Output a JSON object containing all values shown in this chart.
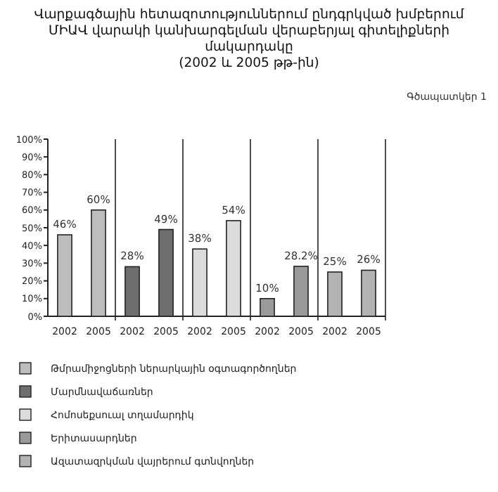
{
  "chart_data": {
    "type": "bar",
    "title": "Վարքագծային հետազոտություններում ընդգրկված խմբերում\nՄԻԱՎ վարակի կանխարգելման վերաբերյալ գիտելիքների\nմակարդակը\n(2002 և 2005 թթ-ին)",
    "annotations": [
      "Գծապատկեր 1"
    ],
    "categories": [
      "2002",
      "2005",
      "2002",
      "2005",
      "2002",
      "2005",
      "2002",
      "2005",
      "2002",
      "2005"
    ],
    "series": [
      {
        "name": "Թմրամիջոցների ներարկային օգտագործողներ",
        "color": "#bdbdbd",
        "values": [
          46,
          60,
          null,
          null,
          null,
          null,
          null,
          null,
          null,
          null
        ],
        "value_labels": [
          "46%",
          "60%",
          null,
          null,
          null,
          null,
          null,
          null,
          null,
          null
        ]
      },
      {
        "name": "Մարմնավաճառներ",
        "color": "#6e6e6e",
        "values": [
          null,
          null,
          28,
          49,
          null,
          null,
          null,
          null,
          null,
          null
        ],
        "value_labels": [
          null,
          null,
          "28%",
          "49%",
          null,
          null,
          null,
          null,
          null,
          null
        ]
      },
      {
        "name": "Հոմոսեքսուալ տղամարդիկ",
        "color": "#dcdcdc",
        "values": [
          null,
          null,
          null,
          null,
          38,
          54,
          null,
          null,
          null,
          null
        ],
        "value_labels": [
          null,
          null,
          null,
          null,
          "38%",
          "54%",
          null,
          null,
          null,
          null
        ]
      },
      {
        "name": "Երիտասարդներ",
        "color": "#9a9a9a",
        "values": [
          null,
          null,
          null,
          null,
          null,
          null,
          10,
          28.2,
          null,
          null
        ],
        "value_labels": [
          null,
          null,
          null,
          null,
          null,
          null,
          "10%",
          "28.2%",
          null,
          null
        ]
      },
      {
        "name": "Ազատազրկման վայրերում գտնվողներ",
        "color": "#b3b3b3",
        "values": [
          null,
          null,
          null,
          null,
          null,
          null,
          null,
          null,
          25,
          26
        ],
        "value_labels": [
          null,
          null,
          null,
          null,
          null,
          null,
          null,
          null,
          "25%",
          "26%"
        ]
      }
    ],
    "ylim": [
      0,
      100
    ],
    "yticks": [
      {
        "value": 0,
        "label": "0%"
      },
      {
        "value": 10,
        "label": "10%"
      },
      {
        "value": 20,
        "label": "20%"
      },
      {
        "value": 30,
        "label": "30%"
      },
      {
        "value": 40,
        "label": "40%"
      },
      {
        "value": 50,
        "label": "50%"
      },
      {
        "value": 60,
        "label": "60%"
      },
      {
        "value": 70,
        "label": "70%"
      },
      {
        "value": 80,
        "label": "80%"
      },
      {
        "value": 90,
        "label": "90%"
      },
      {
        "value": 100,
        "label": "100%"
      }
    ],
    "grid": false,
    "legend": "bottom"
  }
}
